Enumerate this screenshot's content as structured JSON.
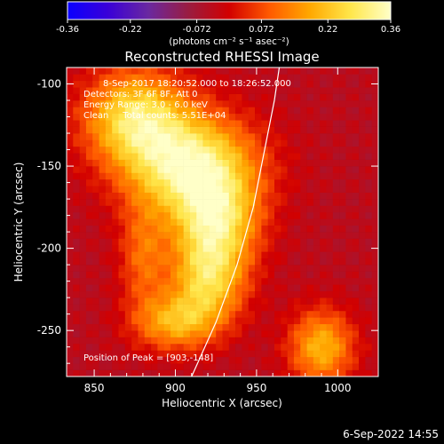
{
  "colorbar": {
    "ticks": [
      "-0.36",
      "-0.22",
      "-0.072",
      "0.072",
      "0.22",
      "0.36"
    ],
    "tick_values": [
      -0.36,
      -0.22,
      -0.072,
      0.072,
      0.22,
      0.36
    ],
    "units": "(photons cm⁻² s⁻¹ asec⁻²)",
    "range": [
      -0.36,
      0.36
    ],
    "colors": [
      "#0a00ff",
      "#3a00d8",
      "#6a28a0",
      "#9a1c40",
      "#d20000",
      "#ff5a00",
      "#ffa800",
      "#ffe64a",
      "#ffffc8"
    ]
  },
  "chart_data": {
    "type": "heatmap",
    "title": "Reconstructed RHESSI Image",
    "xlabel": "Heliocentric X (arcsec)",
    "ylabel": "Heliocentric Y (arcsec)",
    "xlim": [
      833,
      1025
    ],
    "ylim": [
      -278,
      -90
    ],
    "xticks": [
      850,
      900,
      950,
      1000
    ],
    "yticks": [
      -100,
      -150,
      -200,
      -250
    ],
    "annotations": [
      "8-Sep-2017 18:20:52.000 to 18:26:52.000",
      "Detectors: 3F 6F 8F, Att 0",
      "Energy Range: 3.0 - 6.0 keV",
      "Clean     Total counts: 5.51E+04",
      "Position of Peak = [903,-148]"
    ],
    "peak": [
      903,
      -148
    ],
    "limb_curve": [
      [
        910,
        -278
      ],
      [
        925,
        -245
      ],
      [
        938,
        -210
      ],
      [
        948,
        -175
      ],
      [
        955,
        -140
      ],
      [
        961,
        -110
      ],
      [
        964,
        -90
      ]
    ],
    "sources": [
      {
        "x": 910,
        "y": -150,
        "sx": 28,
        "sy": 22,
        "amp": 0.36
      },
      {
        "x": 875,
        "y": -120,
        "sx": 22,
        "sy": 20,
        "amp": 0.3
      },
      {
        "x": 925,
        "y": -185,
        "sx": 18,
        "sy": 20,
        "amp": 0.28
      },
      {
        "x": 920,
        "y": -220,
        "sx": 16,
        "sy": 18,
        "amp": 0.26
      },
      {
        "x": 900,
        "y": -245,
        "sx": 18,
        "sy": 12,
        "amp": 0.22
      },
      {
        "x": 880,
        "y": -205,
        "sx": 10,
        "sy": 22,
        "amp": 0.14
      },
      {
        "x": 990,
        "y": -260,
        "sx": 14,
        "sy": 16,
        "amp": 0.24
      }
    ]
  },
  "footer": {
    "timestamp": "6-Sep-2022 14:55"
  }
}
